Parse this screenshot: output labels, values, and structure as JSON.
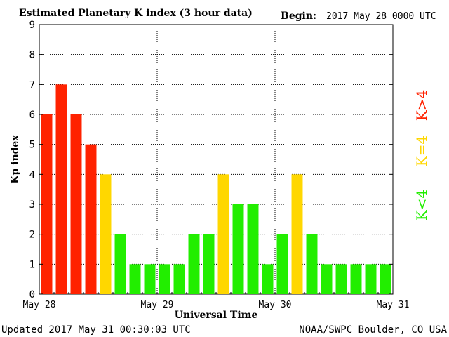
{
  "header": {
    "title": "Estimated Planetary K index (3 hour data)",
    "begin_label": "Begin:",
    "begin_value": "2017 May 28 0000 UTC"
  },
  "footer": {
    "updated": "Updated 2017 May 31 00:30:03 UTC",
    "source": "NOAA/SWPC Boulder, CO USA"
  },
  "legend": {
    "high": {
      "label": "K>4",
      "color": "#ff2200"
    },
    "mid": {
      "label": "K=4",
      "color": "#ffd700"
    },
    "low": {
      "label": "K<4",
      "color": "#22ee00"
    }
  },
  "chart_data": {
    "type": "bar",
    "title": "Estimated Planetary K index (3 hour data)",
    "xlabel": "Universal Time",
    "ylabel": "Kp index",
    "ylim": [
      0,
      9
    ],
    "yticks": [
      0,
      1,
      2,
      3,
      4,
      5,
      6,
      7,
      8,
      9
    ],
    "xtick_labels": [
      "May 28",
      "May 29",
      "May 30",
      "May 31"
    ],
    "interval_hours": 3,
    "grid": true,
    "values": [
      6,
      7,
      6,
      5,
      4,
      2,
      1,
      1,
      1,
      1,
      2,
      2,
      4,
      3,
      3,
      1,
      2,
      4,
      2,
      1,
      1,
      1,
      1,
      1
    ],
    "colors": {
      "high": "#ff2200",
      "mid": "#ffd700",
      "low": "#22ee00"
    }
  }
}
